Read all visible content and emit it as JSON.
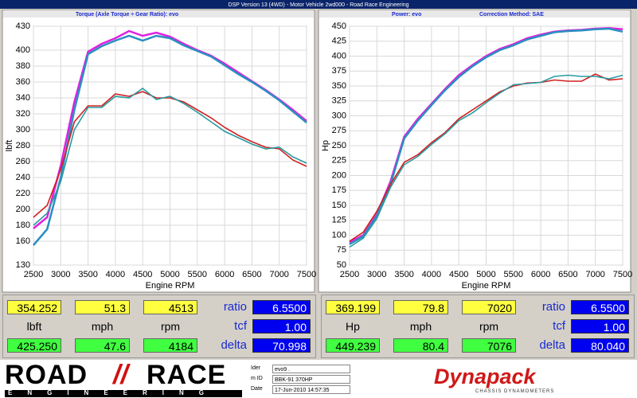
{
  "window_title": "DSP Version 13 (4WD) - Motor Vehicle 2wd000 - Road Race Engineering",
  "chart_data": [
    {
      "type": "line",
      "title": "Torque (Axle Torque ÷ Gear Ratio): evo",
      "x_label": "Engine RPM",
      "y_label": "lbft",
      "x": [
        2500,
        2750,
        3000,
        3250,
        3500,
        3750,
        4000,
        4250,
        4500,
        4750,
        5000,
        5250,
        5500,
        5750,
        6000,
        6250,
        6500,
        6750,
        7000,
        7250,
        7500
      ],
      "xlim": [
        2500,
        7500
      ],
      "xticks": [
        2500,
        3000,
        3500,
        4000,
        4500,
        5000,
        5500,
        6000,
        6500,
        7000,
        7500
      ],
      "ylim": [
        130,
        430
      ],
      "yticks": [
        130,
        160,
        180,
        200,
        220,
        240,
        260,
        280,
        300,
        320,
        340,
        360,
        380,
        400,
        430
      ],
      "grid": true,
      "series": [
        {
          "color": "#e020e0",
          "values": [
            176,
            190,
            255,
            335,
            398,
            408,
            415,
            424,
            418,
            422,
            417,
            408,
            400,
            393,
            383,
            372,
            361,
            350,
            338,
            325,
            311
          ]
        },
        {
          "color": "#2a8fc0",
          "values": [
            155,
            175,
            240,
            325,
            395,
            405,
            412,
            418,
            412,
            418,
            415,
            406,
            399,
            392,
            381,
            370,
            360,
            349,
            337,
            323,
            309
          ]
        },
        {
          "color": "#d02020",
          "values": [
            190,
            205,
            250,
            310,
            330,
            330,
            345,
            342,
            348,
            340,
            340,
            335,
            325,
            315,
            303,
            293,
            285,
            278,
            276,
            262,
            254
          ]
        },
        {
          "color": "#2a9aa0",
          "values": [
            180,
            195,
            235,
            300,
            328,
            328,
            342,
            340,
            352,
            338,
            342,
            333,
            322,
            310,
            298,
            290,
            282,
            276,
            278,
            266,
            258
          ]
        }
      ]
    },
    {
      "type": "line",
      "title": "Power: evo",
      "annotation": "Correction Method: SAE",
      "x_label": "Engine RPM",
      "y_label": "Hp",
      "x": [
        2500,
        2750,
        3000,
        3250,
        3500,
        3750,
        4000,
        4250,
        4500,
        4750,
        5000,
        5250,
        5500,
        5750,
        6000,
        6250,
        6500,
        6750,
        7000,
        7250,
        7500
      ],
      "xlim": [
        2500,
        7500
      ],
      "xticks": [
        2500,
        3000,
        3500,
        4000,
        4500,
        5000,
        5500,
        6000,
        6500,
        7000,
        7500
      ],
      "ylim": [
        50,
        450
      ],
      "yticks": [
        50,
        75,
        100,
        125,
        150,
        175,
        200,
        225,
        250,
        275,
        300,
        325,
        350,
        375,
        400,
        425,
        450
      ],
      "grid": true,
      "series": [
        {
          "color": "#e020e0",
          "values": [
            88,
            100,
            135,
            190,
            265,
            295,
            320,
            345,
            368,
            385,
            400,
            412,
            420,
            430,
            436,
            441,
            443,
            444,
            446,
            447,
            445
          ]
        },
        {
          "color": "#2a8fc0",
          "values": [
            85,
            98,
            132,
            185,
            262,
            292,
            318,
            343,
            365,
            383,
            398,
            410,
            418,
            428,
            434,
            440,
            442,
            443,
            445,
            446,
            441
          ]
        },
        {
          "color": "#d02020",
          "values": [
            90,
            105,
            140,
            185,
            222,
            235,
            255,
            272,
            295,
            310,
            325,
            340,
            350,
            355,
            356,
            360,
            358,
            358,
            370,
            360,
            362
          ]
        },
        {
          "color": "#2a9aa0",
          "values": [
            80,
            95,
            128,
            180,
            218,
            232,
            252,
            270,
            292,
            305,
            322,
            338,
            352,
            354,
            356,
            366,
            368,
            366,
            366,
            362,
            368
          ]
        }
      ]
    }
  ],
  "readouts": [
    {
      "top": [
        "354.252",
        "51.3",
        "4513"
      ],
      "units": [
        "lbft",
        "mph",
        "rpm"
      ],
      "bottom": [
        "425.250",
        "47.6",
        "4184"
      ],
      "factors": [
        {
          "label": "ratio",
          "value": "6.5500"
        },
        {
          "label": "tcf",
          "value": "1.00"
        },
        {
          "label": "delta",
          "value": "70.998"
        }
      ]
    },
    {
      "top": [
        "369.199",
        "79.8",
        "7020"
      ],
      "units": [
        "Hp",
        "mph",
        "rpm"
      ],
      "bottom": [
        "449.239",
        "80.4",
        "7076"
      ],
      "factors": [
        {
          "label": "ratio",
          "value": "6.5500"
        },
        {
          "label": "tcf",
          "value": "1.00"
        },
        {
          "label": "delta",
          "value": "80.040"
        }
      ]
    }
  ],
  "footer": {
    "logo_left": "ROAD",
    "logo_right": "RACE",
    "logo_sub": "ENGINEERING",
    "fields": [
      {
        "label": "Ider",
        "value": "evo9 ."
      },
      {
        "label": "m ID",
        "value": "BBK-91 370HP"
      },
      {
        "label": "Date",
        "value": "17-Jun-2010 14:57:35"
      }
    ],
    "brand": "Dynapack",
    "brand_sub": "CHASSIS DYNAMOMETERS"
  }
}
